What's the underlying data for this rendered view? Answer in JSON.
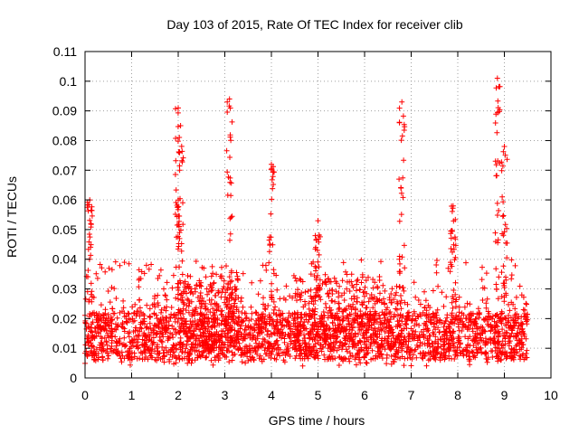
{
  "chart_data": {
    "type": "scatter",
    "title": "Day 103 of 2015, Rate Of TEC Index for receiver clib",
    "xlabel": "GPS time / hours",
    "ylabel": "ROTI / TECUs",
    "xlim": [
      0,
      10
    ],
    "ylim": [
      0,
      0.11
    ],
    "xticks": [
      "0",
      "1",
      "2",
      "3",
      "4",
      "5",
      "6",
      "7",
      "8",
      "9",
      "10"
    ],
    "yticks": [
      "0",
      "0.01",
      "0.02",
      "0.03",
      "0.04",
      "0.05",
      "0.06",
      "0.07",
      "0.08",
      "0.09",
      "0.1",
      "0.11"
    ],
    "grid": true,
    "marker": "+",
    "color": "#ff0000",
    "x_range_data": [
      0,
      9.5
    ],
    "spikes": [
      {
        "x": 0.1,
        "peak": 0.06
      },
      {
        "x": 2.0,
        "peak": 0.091
      },
      {
        "x": 2.05,
        "peak": 0.085
      },
      {
        "x": 3.1,
        "peak": 0.094
      },
      {
        "x": 4.0,
        "peak": 0.072
      },
      {
        "x": 5.0,
        "peak": 0.053
      },
      {
        "x": 6.8,
        "peak": 0.093
      },
      {
        "x": 7.9,
        "peak": 0.058
      },
      {
        "x": 8.85,
        "peak": 0.101
      },
      {
        "x": 9.0,
        "peak": 0.078
      }
    ]
  }
}
